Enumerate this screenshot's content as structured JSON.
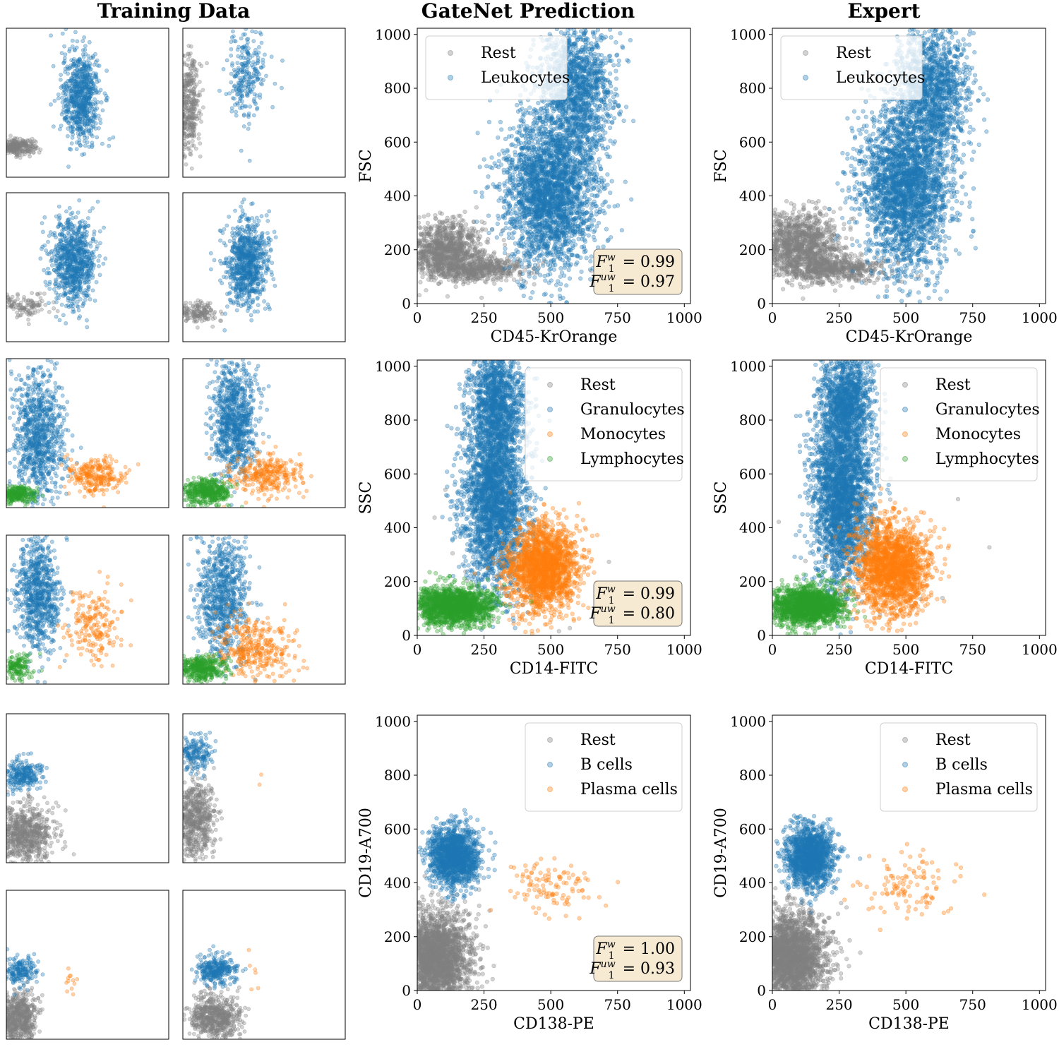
{
  "column_titles": [
    "Training Data",
    "GateNet Prediction",
    "Expert"
  ],
  "colors": {
    "Rest": "#808080",
    "Leukocytes": "#1f77b4",
    "Granulocytes": "#1f77b4",
    "Monocytes": "#ff7f0e",
    "Lymphocytes": "#2ca02c",
    "B cells": "#1f77b4",
    "Plasma cells": "#ff7f0e",
    "f1_box_fill": "#f7ead3",
    "f1_box_stroke": "#777777"
  },
  "chart_data": [
    {
      "type": "scatter",
      "row": 1,
      "panel": "GateNet Prediction",
      "xlabel": "CD45-KrOrange",
      "ylabel": "FSC",
      "xlim": [
        0,
        1023
      ],
      "ylim": [
        0,
        1023
      ],
      "xticks": [
        0,
        250,
        500,
        750,
        1000
      ],
      "yticks": [
        0,
        200,
        400,
        600,
        800,
        1000
      ],
      "legend": [
        "Rest",
        "Leukocytes"
      ],
      "legend_position": "upper-left",
      "f1": {
        "w": "0.99",
        "uw": "0.97"
      },
      "clusters": [
        {
          "label": "Rest",
          "cx": 100,
          "cy": 200,
          "sx": 75,
          "sy": 55,
          "n": 1000
        },
        {
          "label": "Rest",
          "cx": 230,
          "cy": 130,
          "sx": 90,
          "sy": 22,
          "n": 500
        },
        {
          "label": "Leukocytes",
          "cx": 500,
          "cy": 420,
          "sx": 85,
          "sy": 150,
          "n": 2600
        },
        {
          "label": "Leukocytes",
          "cx": 600,
          "cy": 800,
          "sx": 70,
          "sy": 120,
          "n": 1300
        }
      ]
    },
    {
      "type": "scatter",
      "row": 1,
      "panel": "Expert",
      "xlabel": "CD45-KrOrange",
      "ylabel": "FSC",
      "xlim": [
        0,
        1023
      ],
      "ylim": [
        0,
        1023
      ],
      "xticks": [
        0,
        250,
        500,
        750,
        1000
      ],
      "yticks": [
        0,
        200,
        400,
        600,
        800,
        1000
      ],
      "legend": [
        "Rest",
        "Leukocytes"
      ],
      "legend_position": "upper-left",
      "clusters": [
        {
          "label": "Rest",
          "cx": 100,
          "cy": 220,
          "sx": 75,
          "sy": 60,
          "n": 1100
        },
        {
          "label": "Rest",
          "cx": 240,
          "cy": 130,
          "sx": 90,
          "sy": 25,
          "n": 500
        },
        {
          "label": "Leukocytes",
          "cx": 500,
          "cy": 430,
          "sx": 85,
          "sy": 150,
          "n": 2600
        },
        {
          "label": "Leukocytes",
          "cx": 600,
          "cy": 800,
          "sx": 70,
          "sy": 120,
          "n": 1300
        }
      ]
    },
    {
      "type": "scatter",
      "row": 2,
      "panel": "GateNet Prediction",
      "xlabel": "CD14-FITC",
      "ylabel": "SSC",
      "xlim": [
        0,
        1023
      ],
      "ylim": [
        0,
        1023
      ],
      "xticks": [
        0,
        250,
        500,
        750,
        1000
      ],
      "yticks": [
        0,
        200,
        400,
        600,
        800,
        1000
      ],
      "legend": [
        "Rest",
        "Granulocytes",
        "Monocytes",
        "Lymphocytes"
      ],
      "legend_position": "upper-right",
      "f1": {
        "w": "0.99",
        "uw": "0.80"
      },
      "clusters": [
        {
          "label": "Granulocytes",
          "cx": 290,
          "cy": 520,
          "sx": 60,
          "sy": 170,
          "n": 2600
        },
        {
          "label": "Granulocytes",
          "cx": 300,
          "cy": 880,
          "sx": 50,
          "sy": 90,
          "n": 1000
        },
        {
          "label": "Monocytes",
          "cx": 470,
          "cy": 250,
          "sx": 65,
          "sy": 80,
          "n": 1800
        },
        {
          "label": "Lymphocytes",
          "cx": 140,
          "cy": 110,
          "sx": 75,
          "sy": 35,
          "n": 1600
        },
        {
          "label": "Rest",
          "cx": 300,
          "cy": 200,
          "sx": 250,
          "sy": 200,
          "n": 25
        }
      ]
    },
    {
      "type": "scatter",
      "row": 2,
      "panel": "Expert",
      "xlabel": "CD14-FITC",
      "ylabel": "SSC",
      "xlim": [
        0,
        1023
      ],
      "ylim": [
        0,
        1023
      ],
      "xticks": [
        0,
        250,
        500,
        750,
        1000
      ],
      "yticks": [
        0,
        200,
        400,
        600,
        800,
        1000
      ],
      "legend": [
        "Rest",
        "Granulocytes",
        "Monocytes",
        "Lymphocytes"
      ],
      "legend_position": "upper-right",
      "clusters": [
        {
          "label": "Granulocytes",
          "cx": 260,
          "cy": 530,
          "sx": 55,
          "sy": 170,
          "n": 2600
        },
        {
          "label": "Granulocytes",
          "cx": 280,
          "cy": 880,
          "sx": 50,
          "sy": 90,
          "n": 1000
        },
        {
          "label": "Monocytes",
          "cx": 450,
          "cy": 250,
          "sx": 70,
          "sy": 85,
          "n": 1800
        },
        {
          "label": "Lymphocytes",
          "cx": 130,
          "cy": 110,
          "sx": 70,
          "sy": 35,
          "n": 1600
        },
        {
          "label": "Rest",
          "cx": 300,
          "cy": 200,
          "sx": 250,
          "sy": 200,
          "n": 25
        }
      ]
    },
    {
      "type": "scatter",
      "row": 3,
      "panel": "GateNet Prediction",
      "xlabel": "CD138-PE",
      "ylabel": "CD19-A700",
      "xlim": [
        0,
        1023
      ],
      "ylim": [
        0,
        1023
      ],
      "xticks": [
        0,
        250,
        500,
        750,
        1000
      ],
      "yticks": [
        0,
        200,
        400,
        600,
        800,
        1000
      ],
      "legend": [
        "Rest",
        "B cells",
        "Plasma cells"
      ],
      "legend_position": "upper-right",
      "f1": {
        "w": "1.00",
        "uw": "0.93"
      },
      "clusters": [
        {
          "label": "Rest",
          "cx": 60,
          "cy": 120,
          "sx": 70,
          "sy": 85,
          "n": 2600
        },
        {
          "label": "B cells",
          "cx": 140,
          "cy": 500,
          "sx": 45,
          "sy": 55,
          "n": 1400
        },
        {
          "label": "Plasma cells",
          "cx": 490,
          "cy": 390,
          "sx": 90,
          "sy": 60,
          "n": 110
        }
      ]
    },
    {
      "type": "scatter",
      "row": 3,
      "panel": "Expert",
      "xlabel": "CD138-PE",
      "ylabel": "CD19-A700",
      "xlim": [
        0,
        1023
      ],
      "ylim": [
        0,
        1023
      ],
      "xticks": [
        0,
        250,
        500,
        750,
        1000
      ],
      "yticks": [
        0,
        200,
        400,
        600,
        800,
        1000
      ],
      "legend": [
        "Rest",
        "B cells",
        "Plasma cells"
      ],
      "legend_position": "upper-right",
      "clusters": [
        {
          "label": "Rest",
          "cx": 60,
          "cy": 120,
          "sx": 70,
          "sy": 85,
          "n": 2600
        },
        {
          "label": "B cells",
          "cx": 140,
          "cy": 500,
          "sx": 45,
          "sy": 55,
          "n": 1400
        },
        {
          "label": "Plasma cells",
          "cx": 500,
          "cy": 390,
          "sx": 90,
          "sy": 60,
          "n": 110
        }
      ]
    }
  ],
  "training_thumbnails": [
    {
      "row": 1,
      "clusters": [
        {
          "label": "Rest",
          "cx": 60,
          "cy": 210,
          "sx": 60,
          "sy": 25,
          "n": 300
        },
        {
          "label": "Leukocytes",
          "cx": 470,
          "cy": 550,
          "sx": 60,
          "sy": 160,
          "n": 700
        }
      ]
    },
    {
      "row": 1,
      "clusters": [
        {
          "label": "Rest",
          "cx": 30,
          "cy": 500,
          "sx": 40,
          "sy": 170,
          "n": 400
        },
        {
          "label": "Leukocytes",
          "cx": 400,
          "cy": 700,
          "sx": 60,
          "sy": 160,
          "n": 250
        }
      ]
    },
    {
      "row": 1,
      "clusters": [
        {
          "label": "Rest",
          "cx": 120,
          "cy": 250,
          "sx": 80,
          "sy": 40,
          "n": 120
        },
        {
          "label": "Leukocytes",
          "cx": 420,
          "cy": 550,
          "sx": 70,
          "sy": 150,
          "n": 800
        }
      ]
    },
    {
      "row": 1,
      "clusters": [
        {
          "label": "Rest",
          "cx": 100,
          "cy": 200,
          "sx": 60,
          "sy": 40,
          "n": 150
        },
        {
          "label": "Leukocytes",
          "cx": 400,
          "cy": 550,
          "sx": 70,
          "sy": 150,
          "n": 800
        }
      ]
    },
    {
      "row": 2,
      "clusters": [
        {
          "label": "Granulocytes",
          "cx": 200,
          "cy": 500,
          "sx": 80,
          "sy": 220,
          "n": 900
        },
        {
          "label": "Monocytes",
          "cx": 560,
          "cy": 220,
          "sx": 90,
          "sy": 60,
          "n": 250
        },
        {
          "label": "Lymphocytes",
          "cx": 60,
          "cy": 90,
          "sx": 60,
          "sy": 30,
          "n": 300
        }
      ]
    },
    {
      "row": 2,
      "clusters": [
        {
          "label": "Granulocytes",
          "cx": 320,
          "cy": 600,
          "sx": 70,
          "sy": 200,
          "n": 900
        },
        {
          "label": "Monocytes",
          "cx": 520,
          "cy": 220,
          "sx": 120,
          "sy": 70,
          "n": 300
        },
        {
          "label": "Lymphocytes",
          "cx": 150,
          "cy": 110,
          "sx": 80,
          "sy": 45,
          "n": 450
        }
      ]
    },
    {
      "row": 2,
      "clusters": [
        {
          "label": "Granulocytes",
          "cx": 200,
          "cy": 620,
          "sx": 70,
          "sy": 200,
          "n": 800
        },
        {
          "label": "Monocytes",
          "cx": 550,
          "cy": 400,
          "sx": 80,
          "sy": 120,
          "n": 200
        },
        {
          "label": "Lymphocytes",
          "cx": 70,
          "cy": 120,
          "sx": 50,
          "sy": 50,
          "n": 150
        }
      ]
    },
    {
      "row": 2,
      "clusters": [
        {
          "label": "Granulocytes",
          "cx": 250,
          "cy": 600,
          "sx": 80,
          "sy": 220,
          "n": 800
        },
        {
          "label": "Monocytes",
          "cx": 450,
          "cy": 250,
          "sx": 120,
          "sy": 100,
          "n": 350
        },
        {
          "label": "Lymphocytes",
          "cx": 120,
          "cy": 110,
          "sx": 70,
          "sy": 40,
          "n": 400
        }
      ]
    },
    {
      "row": 3,
      "clusters": [
        {
          "label": "Rest",
          "cx": 120,
          "cy": 200,
          "sx": 90,
          "sy": 100,
          "n": 700
        },
        {
          "label": "B cells",
          "cx": 100,
          "cy": 600,
          "sx": 60,
          "sy": 50,
          "n": 250
        }
      ]
    },
    {
      "row": 3,
      "clusters": [
        {
          "label": "Rest",
          "cx": 80,
          "cy": 300,
          "sx": 60,
          "sy": 130,
          "n": 600
        },
        {
          "label": "B cells",
          "cx": 80,
          "cy": 750,
          "sx": 50,
          "sy": 60,
          "n": 180
        },
        {
          "label": "Plasma cells",
          "cx": 500,
          "cy": 600,
          "sx": 80,
          "sy": 50,
          "n": 2
        }
      ]
    },
    {
      "row": 3,
      "clusters": [
        {
          "label": "Rest",
          "cx": 70,
          "cy": 150,
          "sx": 60,
          "sy": 90,
          "n": 600
        },
        {
          "label": "B cells",
          "cx": 90,
          "cy": 470,
          "sx": 50,
          "sy": 50,
          "n": 180
        },
        {
          "label": "Plasma cells",
          "cx": 420,
          "cy": 400,
          "sx": 40,
          "sy": 40,
          "n": 12
        }
      ]
    },
    {
      "row": 3,
      "clusters": [
        {
          "label": "Rest",
          "cx": 200,
          "cy": 150,
          "sx": 80,
          "sy": 80,
          "n": 600
        },
        {
          "label": "B cells",
          "cx": 210,
          "cy": 480,
          "sx": 60,
          "sy": 50,
          "n": 300
        },
        {
          "label": "Plasma cells",
          "cx": 450,
          "cy": 450,
          "sx": 40,
          "sy": 60,
          "n": 6
        }
      ]
    }
  ]
}
